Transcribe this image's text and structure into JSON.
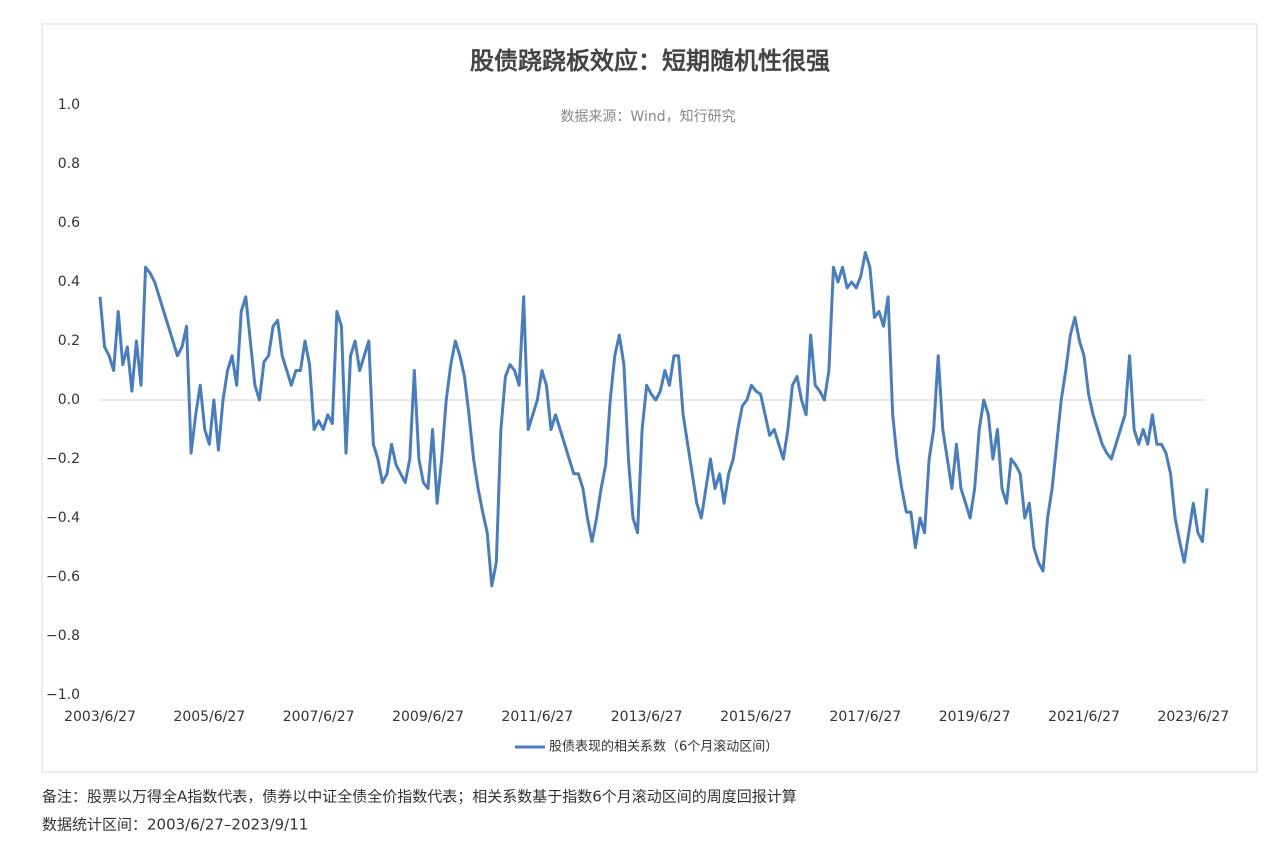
{
  "chart_data": {
    "type": "line",
    "title": "股债跷跷板效应：短期随机性很强",
    "subtitle": "数据来源：Wind，知行研究",
    "categories": [
      "2003/6/27",
      null,
      null,
      null,
      null,
      null,
      null,
      null,
      null,
      null,
      null,
      null,
      null,
      null,
      null,
      null,
      null,
      null,
      null,
      null,
      null,
      null,
      null,
      null,
      "2005/6/27",
      null,
      null,
      null,
      null,
      null,
      null,
      null,
      null,
      null,
      null,
      null,
      null,
      null,
      null,
      null,
      null,
      null,
      null,
      null,
      null,
      null,
      null,
      null,
      "2007/6/27",
      null,
      null,
      null,
      null,
      null,
      null,
      null,
      null,
      null,
      null,
      null,
      null,
      null,
      null,
      null,
      null,
      null,
      null,
      null,
      null,
      null,
      null,
      null,
      "2009/6/27",
      null,
      null,
      null,
      null,
      null,
      null,
      null,
      null,
      null,
      null,
      null,
      null,
      null,
      null,
      null,
      null,
      null,
      null,
      null,
      null,
      null,
      null,
      null,
      "2011/6/27",
      null,
      null,
      null,
      null,
      null,
      null,
      null,
      null,
      null,
      null,
      null,
      null,
      null,
      null,
      null,
      null,
      null,
      null,
      null,
      null,
      null,
      null,
      null,
      "2013/6/27",
      null,
      null,
      null,
      null,
      null,
      null,
      null,
      null,
      null,
      null,
      null,
      null,
      null,
      null,
      null,
      null,
      null,
      null,
      null,
      null,
      null,
      null,
      null,
      "2015/6/27",
      null,
      null,
      null,
      null,
      null,
      null,
      null,
      null,
      null,
      null,
      null,
      null,
      null,
      null,
      null,
      null,
      null,
      null,
      null,
      null,
      null,
      null,
      null,
      "2017/6/27",
      null,
      null,
      null,
      null,
      null,
      null,
      null,
      null,
      null,
      null,
      null,
      null,
      null,
      null,
      null,
      null,
      null,
      null,
      null,
      null,
      null,
      null,
      null,
      "2019/6/27",
      null,
      null,
      null,
      null,
      null,
      null,
      null,
      null,
      null,
      null,
      null,
      null,
      null,
      null,
      null,
      null,
      null,
      null,
      null,
      null,
      null,
      null,
      null,
      "2021/6/27",
      null,
      null,
      null,
      null,
      null,
      null,
      null,
      null,
      null,
      null,
      null,
      null,
      null,
      null,
      null,
      null,
      null,
      null,
      null,
      null,
      null,
      null,
      null,
      "2023/6/27",
      null,
      null,
      null
    ],
    "series": [
      {
        "name": "股债表现的相关系数（6个月滚动区间）",
        "color": "#4a7ebb",
        "values": [
          0.35,
          0.18,
          0.15,
          0.1,
          0.3,
          0.12,
          0.18,
          0.03,
          0.2,
          0.05,
          0.45,
          0.43,
          0.4,
          0.35,
          0.3,
          0.25,
          0.2,
          0.15,
          0.18,
          0.25,
          -0.18,
          -0.05,
          0.05,
          -0.1,
          -0.15,
          0.0,
          -0.17,
          0.0,
          0.1,
          0.15,
          0.05,
          0.3,
          0.35,
          0.2,
          0.05,
          0.0,
          0.13,
          0.15,
          0.25,
          0.27,
          0.15,
          0.1,
          0.05,
          0.1,
          0.1,
          0.2,
          0.12,
          -0.1,
          -0.07,
          -0.1,
          -0.05,
          -0.08,
          0.3,
          0.25,
          -0.18,
          0.15,
          0.2,
          0.1,
          0.15,
          0.2,
          -0.15,
          -0.2,
          -0.28,
          -0.25,
          -0.15,
          -0.22,
          -0.25,
          -0.28,
          -0.2,
          0.1,
          -0.2,
          -0.28,
          -0.3,
          -0.1,
          -0.35,
          -0.2,
          0.0,
          0.12,
          0.2,
          0.15,
          0.08,
          -0.05,
          -0.2,
          -0.3,
          -0.38,
          -0.45,
          -0.63,
          -0.55,
          -0.1,
          0.08,
          0.12,
          0.1,
          0.05,
          0.35,
          -0.1,
          -0.05,
          0.0,
          0.1,
          0.05,
          -0.1,
          -0.05,
          -0.1,
          -0.15,
          -0.2,
          -0.25,
          -0.25,
          -0.3,
          -0.4,
          -0.48,
          -0.4,
          -0.3,
          -0.22,
          0.0,
          0.15,
          0.22,
          0.12,
          -0.2,
          -0.4,
          -0.45,
          -0.1,
          0.05,
          0.02,
          0.0,
          0.03,
          0.1,
          0.05,
          0.15,
          0.15,
          -0.05,
          -0.15,
          -0.25,
          -0.35,
          -0.4,
          -0.3,
          -0.2,
          -0.3,
          -0.25,
          -0.35,
          -0.25,
          -0.2,
          -0.1,
          -0.02,
          0.0,
          0.05,
          0.03,
          0.02,
          -0.05,
          -0.12,
          -0.1,
          -0.15,
          -0.2,
          -0.1,
          0.05,
          0.08,
          0.0,
          -0.05,
          0.22,
          0.05,
          0.03,
          0.0,
          0.1,
          0.45,
          0.4,
          0.45,
          0.38,
          0.4,
          0.38,
          0.42,
          0.5,
          0.45,
          0.28,
          0.3,
          0.25,
          0.35,
          -0.05,
          -0.2,
          -0.3,
          -0.38,
          -0.38,
          -0.5,
          -0.4,
          -0.45,
          -0.2,
          -0.1,
          0.15,
          -0.1,
          -0.2,
          -0.3,
          -0.15,
          -0.3,
          -0.35,
          -0.4,
          -0.3,
          -0.1,
          0.0,
          -0.05,
          -0.2,
          -0.1,
          -0.3,
          -0.35,
          -0.2,
          -0.22,
          -0.25,
          -0.4,
          -0.35,
          -0.5,
          -0.55,
          -0.58,
          -0.4,
          -0.3,
          -0.15,
          0.0,
          0.1,
          0.22,
          0.28,
          0.2,
          0.15,
          0.02,
          -0.05,
          -0.1,
          -0.15,
          -0.18,
          -0.2,
          -0.15,
          -0.1,
          -0.05,
          0.15,
          -0.1,
          -0.15,
          -0.1,
          -0.15,
          -0.05,
          -0.15,
          -0.15,
          -0.18,
          -0.25,
          -0.4,
          -0.48,
          -0.55,
          -0.45,
          -0.35,
          -0.45,
          -0.48,
          -0.3
        ]
      }
    ],
    "ylim": [
      -1,
      1
    ],
    "yticks": [
      {
        "value": -1,
        "label": "−1.0"
      },
      {
        "value": -0.8,
        "label": "−0.8"
      },
      {
        "value": -0.6,
        "label": "−0.6"
      },
      {
        "value": -0.4,
        "label": "−0.4"
      },
      {
        "value": -0.2,
        "label": "−0.2"
      },
      {
        "value": 0,
        "label": "0.0"
      },
      {
        "value": 0.2,
        "label": "0.2"
      },
      {
        "value": 0.4,
        "label": "0.4"
      },
      {
        "value": 0.6,
        "label": "0.6"
      },
      {
        "value": 0.8,
        "label": "0.8"
      },
      {
        "value": 1,
        "label": "1.0"
      }
    ],
    "grid": false,
    "notes": [
      "备注：股票以万得全A指数代表，债券以中证全债全价指数代表；相关系数基于指数6个月滚动区间的周度回报计算",
      "数据统计区间：2003/6/27–2023/9/11"
    ]
  }
}
